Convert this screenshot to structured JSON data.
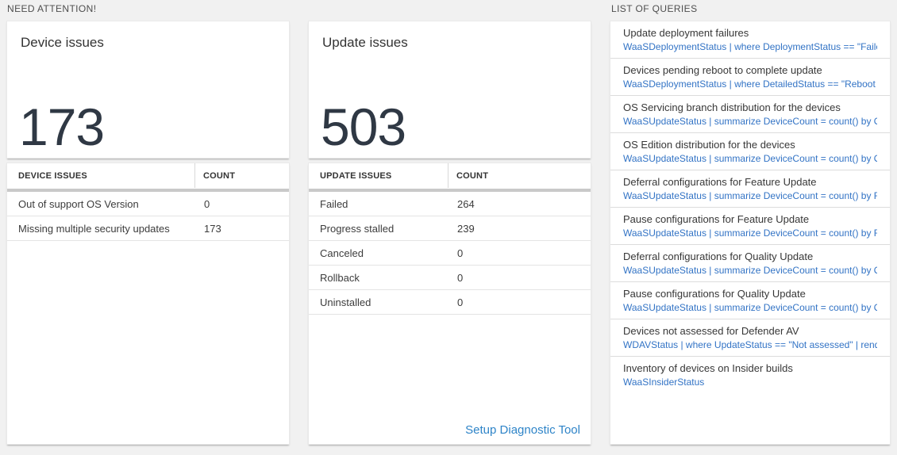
{
  "need_attention": {
    "title": "NEED ATTENTION!"
  },
  "queries_section": {
    "title": "LIST OF QUERIES"
  },
  "device_card": {
    "title": "Device issues",
    "count": "173",
    "table": {
      "headers": [
        "DEVICE ISSUES",
        "COUNT"
      ],
      "rows": [
        {
          "label": "Out of support OS Version",
          "count": "0"
        },
        {
          "label": "Missing multiple security updates",
          "count": "173"
        }
      ]
    }
  },
  "update_card": {
    "title": "Update issues",
    "count": "503",
    "table": {
      "headers": [
        "UPDATE ISSUES",
        "COUNT"
      ],
      "rows": [
        {
          "label": "Failed",
          "count": "264"
        },
        {
          "label": "Progress stalled",
          "count": "239"
        },
        {
          "label": "Canceled",
          "count": "0"
        },
        {
          "label": "Rollback",
          "count": "0"
        },
        {
          "label": "Uninstalled",
          "count": "0"
        }
      ]
    },
    "footer_link": "Setup Diagnostic Tool"
  },
  "query_list": {
    "items": [
      {
        "title": "Update deployment failures",
        "query": "WaaSDeploymentStatus | where DeploymentStatus == \"Failed\" |..."
      },
      {
        "title": "Devices pending reboot to complete update",
        "query": "WaaSDeploymentStatus | where DetailedStatus == \"Reboot pend..."
      },
      {
        "title": "OS Servicing branch distribution for the devices",
        "query": "WaaSUpdateStatus | summarize DeviceCount = count() by OSSer..."
      },
      {
        "title": "OS Edition distribution for the devices",
        "query": "WaaSUpdateStatus | summarize DeviceCount = count() by OSEdit..."
      },
      {
        "title": "Deferral configurations for Feature Update",
        "query": "WaaSUpdateStatus | summarize DeviceCount = count() by Featur..."
      },
      {
        "title": "Pause configurations for Feature Update",
        "query": "WaaSUpdateStatus | summarize DeviceCount = count() by Featur..."
      },
      {
        "title": "Deferral configurations for Quality Update",
        "query": "WaaSUpdateStatus | summarize DeviceCount = count() by Qualit..."
      },
      {
        "title": "Pause configurations for Quality Update",
        "query": "WaaSUpdateStatus | summarize DeviceCount = count() by Qualit..."
      },
      {
        "title": "Devices not assessed for Defender AV",
        "query": "WDAVStatus | where UpdateStatus == \"Not assessed\" | render ta..."
      },
      {
        "title": "Inventory of devices on Insider builds",
        "query": "WaaSInsiderStatus"
      }
    ]
  },
  "colors": {
    "page_background": "#f1f1f1",
    "panel_background": "#ffffff",
    "big_number": "#2f3844",
    "query_link_blue": "#3273c5",
    "setup_link_blue": "#2e84c8",
    "section_header_gray": "#4e4e4e"
  }
}
